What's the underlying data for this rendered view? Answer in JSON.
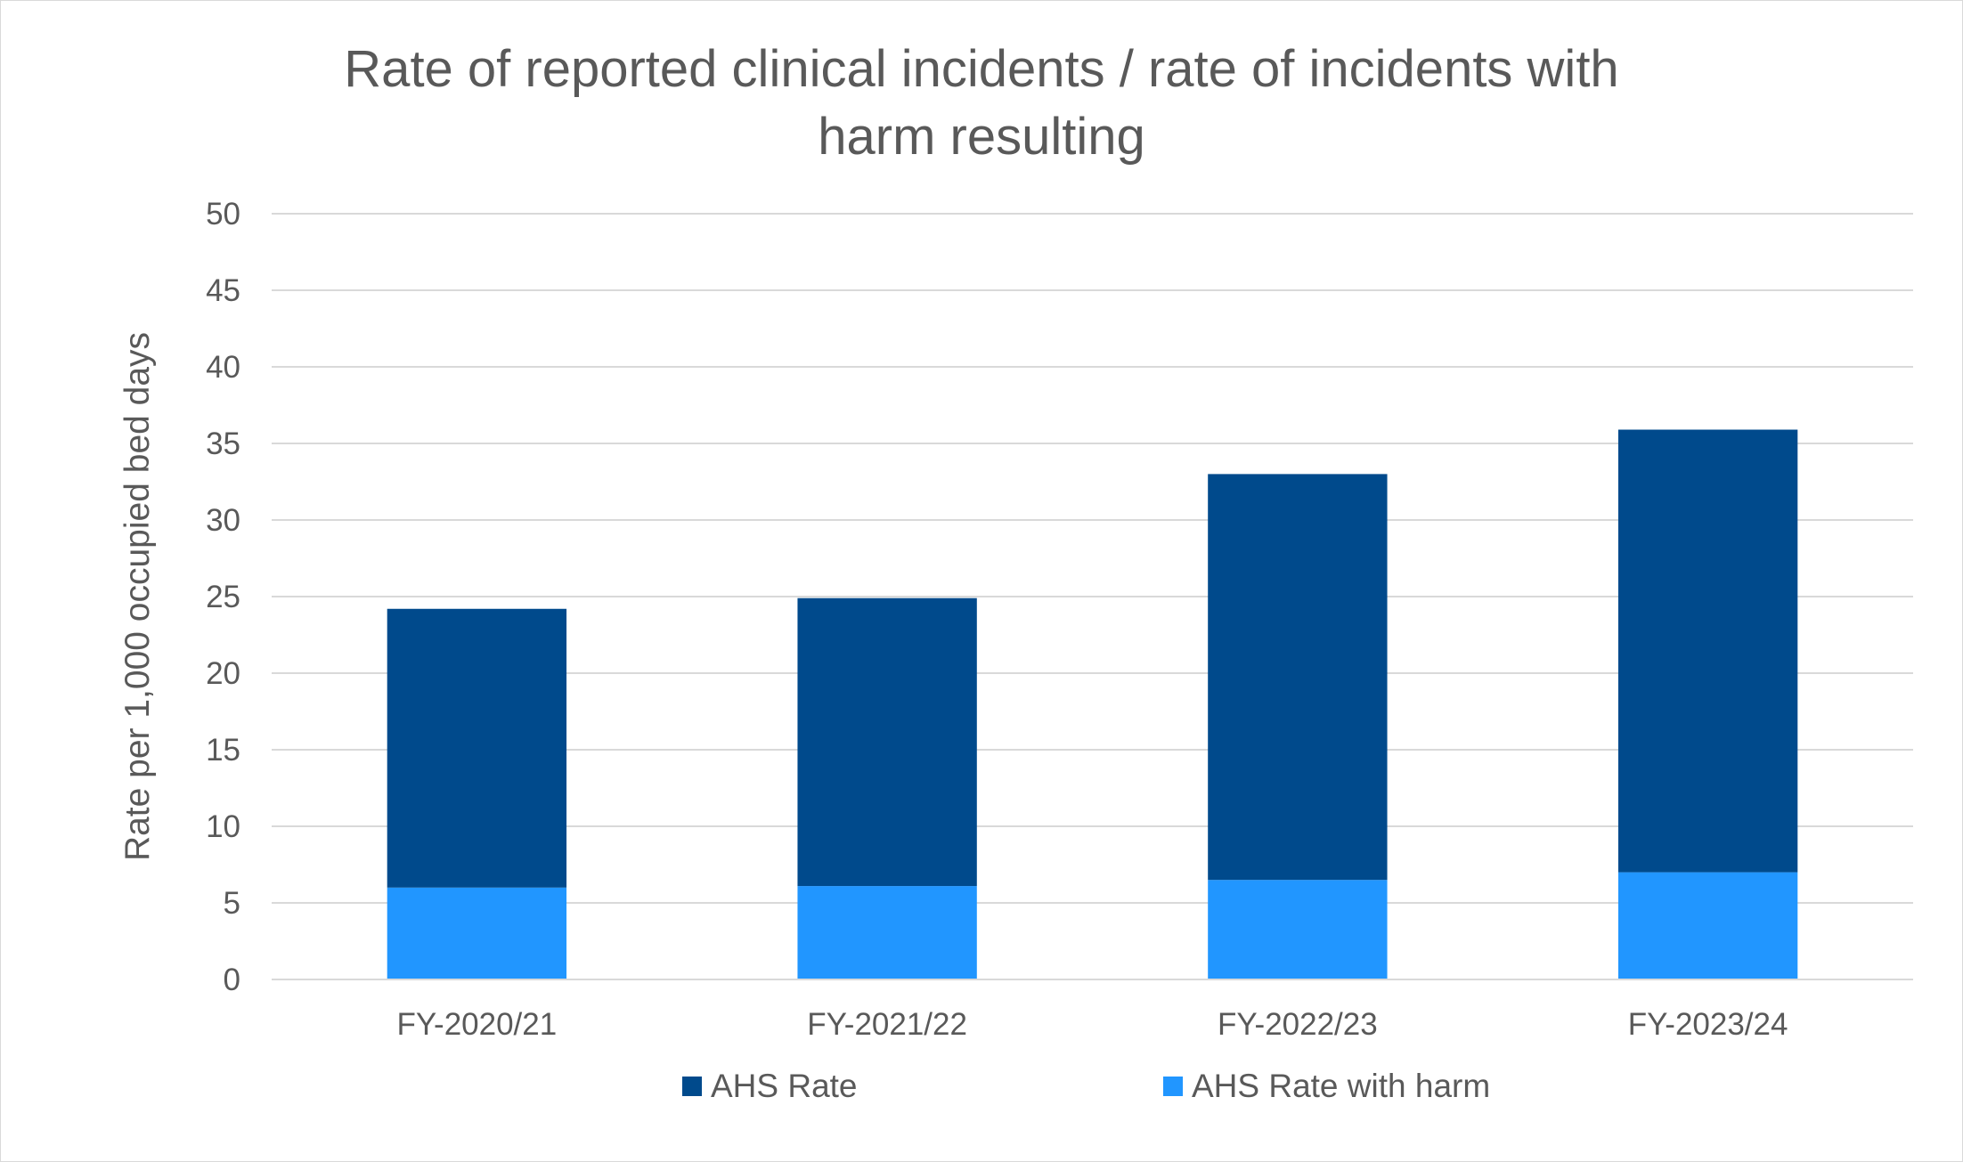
{
  "chart_data": {
    "type": "bar",
    "stacked": true,
    "title": "Rate of reported clinical incidents / rate of incidents with harm resulting",
    "title_lines": [
      "Rate of reported clinical incidents / rate of incidents with",
      "harm resulting"
    ],
    "xlabel": "",
    "ylabel": "Rate per 1,000 occupied bed days",
    "categories": [
      "FY-2020/21",
      "FY-2021/22",
      "FY-2022/23",
      "FY-2023/24"
    ],
    "ylim": [
      0,
      50
    ],
    "yticks": [
      0,
      5,
      10,
      15,
      20,
      25,
      30,
      35,
      40,
      45,
      50
    ],
    "grid": true,
    "legend_position": "bottom",
    "series": [
      {
        "name": "AHS Rate with harm",
        "color": "#2196FF",
        "values": [
          6.0,
          6.1,
          6.5,
          7.0
        ]
      },
      {
        "name": "AHS Rate",
        "color": "#004A8C",
        "values": [
          18.2,
          18.8,
          26.5,
          28.9
        ]
      }
    ],
    "legend_order": [
      "AHS Rate",
      "AHS Rate with harm"
    ]
  }
}
